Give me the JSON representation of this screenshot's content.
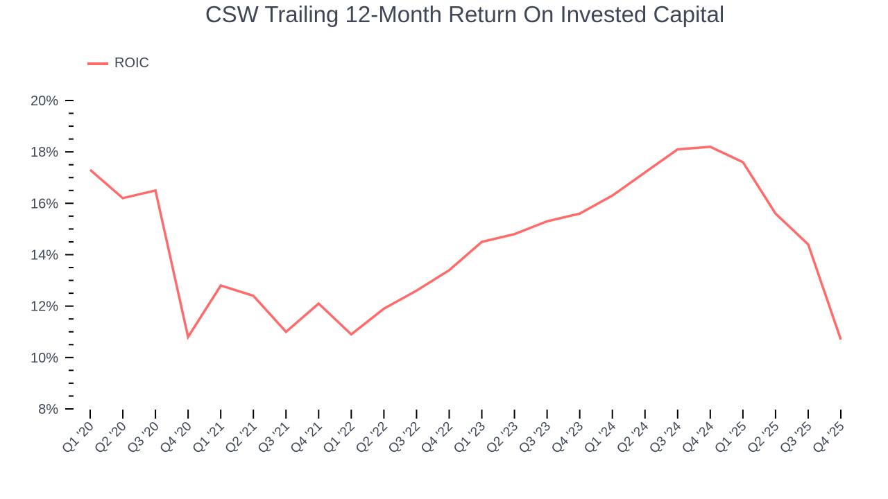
{
  "chart_data": {
    "type": "line",
    "title": "CSW Trailing 12-Month Return On Invested Capital",
    "xlabel": "",
    "ylabel": "",
    "ylim": [
      8,
      20
    ],
    "yticks": [
      "8%",
      "10%",
      "12%",
      "14%",
      "16%",
      "18%",
      "20%"
    ],
    "grid": false,
    "legend_position": "top-left",
    "categories": [
      "Q1 '20",
      "Q2 '20",
      "Q3 '20",
      "Q4 '20",
      "Q1 '21",
      "Q2 '21",
      "Q3 '21",
      "Q4 '21",
      "Q1 '22",
      "Q2 '22",
      "Q3 '22",
      "Q4 '22",
      "Q1 '23",
      "Q2 '23",
      "Q3 '23",
      "Q4 '23",
      "Q1 '24",
      "Q2 '24",
      "Q3 '24",
      "Q4 '24",
      "Q1 '25",
      "Q2 '25",
      "Q3 '25",
      "Q4 '25"
    ],
    "series": [
      {
        "name": "ROIC",
        "color": "#ff6b6b",
        "values": [
          17.3,
          16.2,
          16.5,
          10.8,
          12.8,
          12.4,
          11.0,
          12.1,
          10.9,
          11.9,
          12.6,
          13.4,
          14.5,
          14.8,
          15.3,
          15.6,
          16.3,
          17.2,
          18.1,
          18.2,
          17.6,
          15.6,
          14.4,
          10.7
        ]
      }
    ]
  },
  "colors": {
    "line": "#ff6b6b",
    "text": "#3f4756",
    "axis": "#000000"
  }
}
